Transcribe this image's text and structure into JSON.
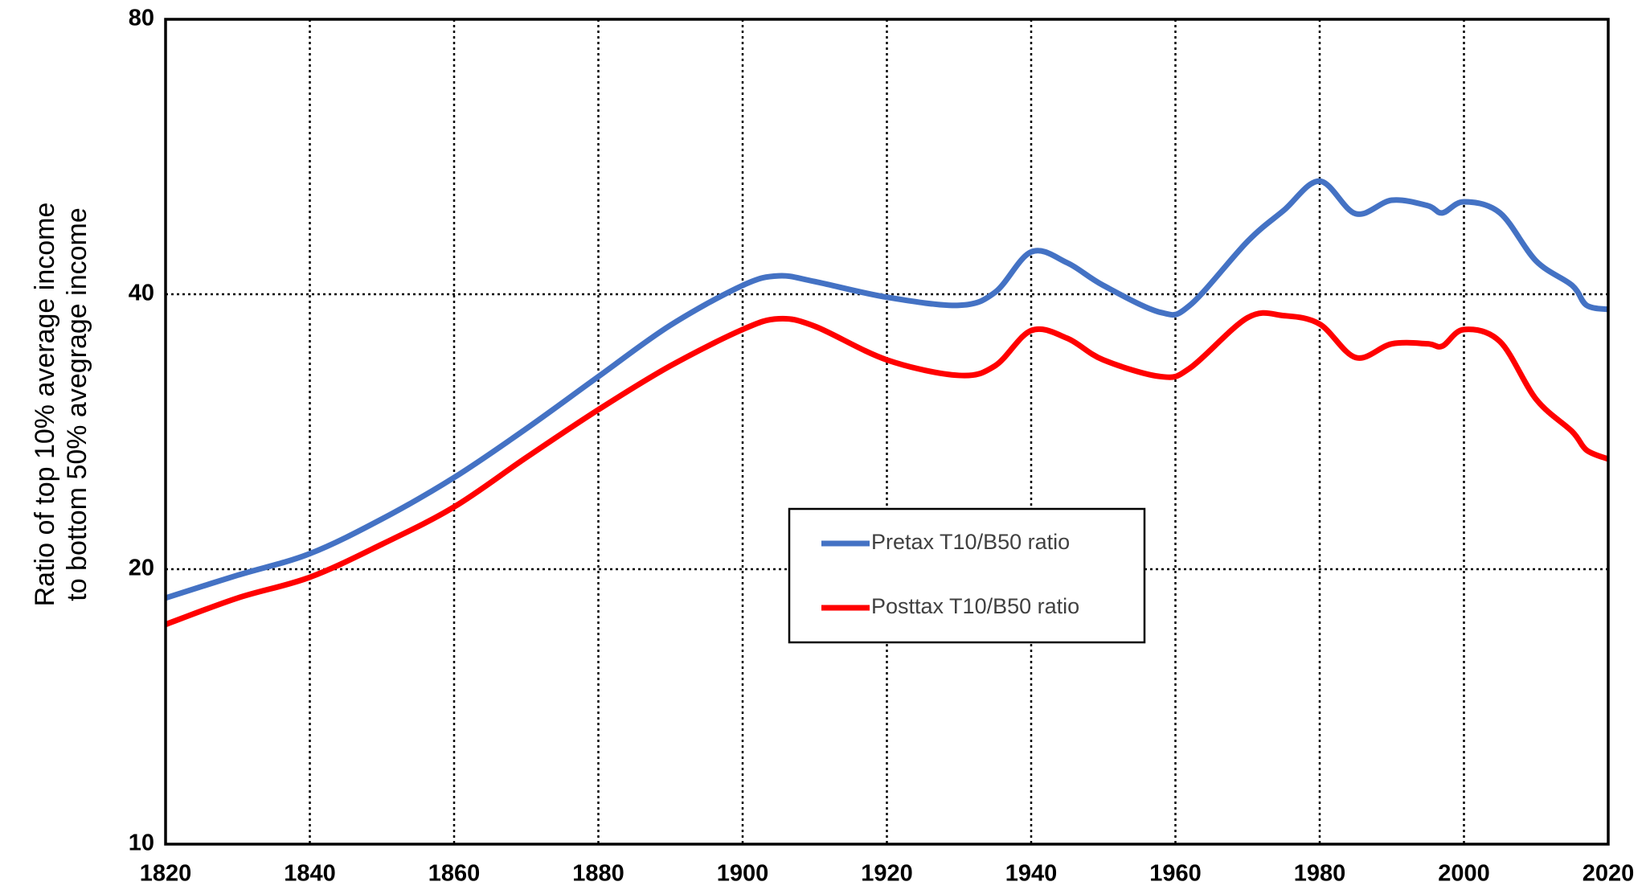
{
  "chart_data": {
    "type": "line",
    "ylabel": [
      "Ratio of top 10% average income",
      "to bottom 50% avegrage income"
    ],
    "x": [
      1820,
      1830,
      1840,
      1850,
      1860,
      1870,
      1880,
      1890,
      1900,
      1905,
      1910,
      1920,
      1930,
      1935,
      1940,
      1945,
      1950,
      1958,
      1962,
      1970,
      1975,
      1980,
      1985,
      1990,
      1995,
      1997,
      2000,
      2005,
      2010,
      2015,
      2017,
      2020
    ],
    "series": [
      {
        "name": "Pretax T10/B50 ratio",
        "color": "#4472c4",
        "values": [
          18.6,
          19.7,
          20.8,
          22.7,
          25.2,
          28.5,
          32.5,
          37.0,
          40.9,
          41.9,
          41.3,
          39.7,
          38.9,
          40.2,
          44.5,
          43.3,
          40.9,
          38.2,
          38.9,
          45.7,
          49.4,
          53.2,
          49.0,
          50.7,
          50.0,
          49.1,
          50.5,
          49.1,
          43.5,
          40.9,
          38.9,
          38.5
        ]
      },
      {
        "name": "Posttax T10/B50 ratio",
        "color": "#ff0000",
        "values": [
          17.4,
          18.6,
          19.6,
          21.3,
          23.4,
          26.5,
          29.9,
          33.4,
          36.6,
          37.6,
          36.9,
          33.9,
          32.6,
          33.4,
          36.5,
          35.8,
          33.9,
          32.5,
          33.2,
          37.7,
          37.9,
          37.1,
          34.1,
          35.3,
          35.3,
          35.1,
          36.6,
          35.5,
          30.7,
          28.3,
          27.0,
          26.4
        ]
      }
    ],
    "xlim": [
      1820,
      2020
    ],
    "xticks": [
      1820,
      1840,
      1860,
      1880,
      1900,
      1920,
      1940,
      1960,
      1980,
      2000,
      2020
    ],
    "ylim": [
      10,
      80
    ],
    "yticks": [
      10,
      20,
      40,
      80
    ],
    "ylog": true,
    "grid": true,
    "legend": "center"
  }
}
